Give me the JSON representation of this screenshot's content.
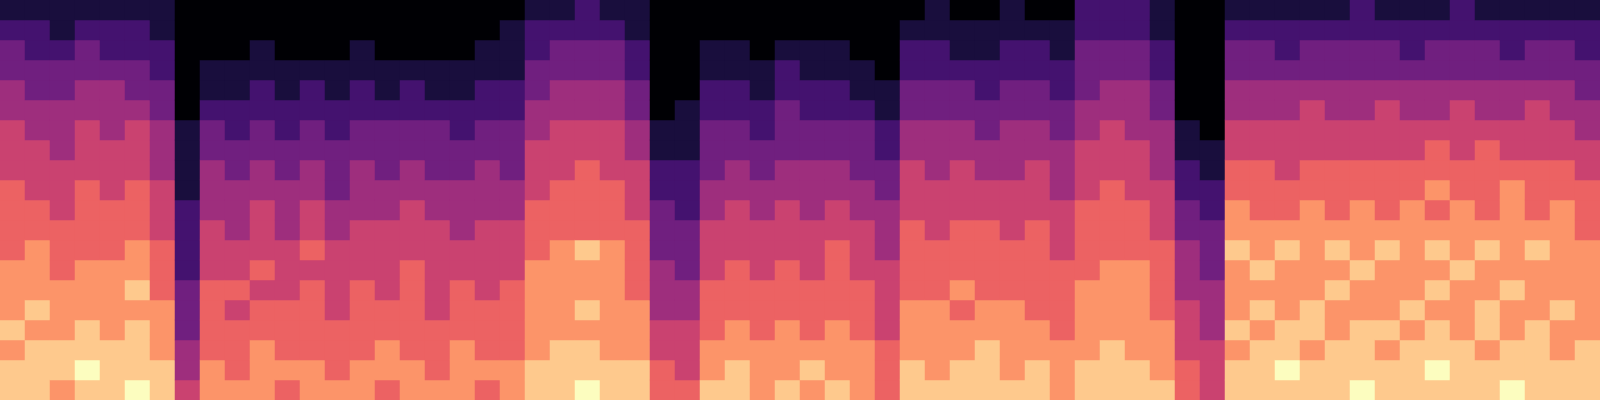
{
  "chart_data": {
    "type": "heatmap",
    "tick_labels": false,
    "zlim": [
      0,
      9
    ],
    "cells": [
      [
        8,
        8,
        7,
        8,
        7,
        7,
        7,
        6,
        6,
        6,
        6,
        5,
        5,
        5,
        4,
        4,
        3,
        3,
        2,
        1
      ],
      [
        8,
        8,
        8,
        7,
        8,
        7,
        7,
        7,
        6,
        6,
        5,
        5,
        5,
        4,
        4,
        3,
        3,
        2,
        2,
        1
      ],
      [
        7,
        8,
        8,
        7,
        7,
        7,
        6,
        6,
        6,
        5,
        5,
        5,
        4,
        4,
        4,
        3,
        3,
        2,
        1,
        1
      ],
      [
        8,
        9,
        8,
        8,
        7,
        7,
        7,
        6,
        6,
        6,
        6,
        5,
        5,
        5,
        4,
        4,
        3,
        3,
        2,
        1
      ],
      [
        8,
        8,
        8,
        7,
        7,
        7,
        7,
        6,
        6,
        6,
        5,
        5,
        5,
        4,
        4,
        4,
        3,
        2,
        2,
        1
      ],
      [
        9,
        8,
        8,
        8,
        7,
        8,
        7,
        7,
        6,
        6,
        6,
        5,
        5,
        5,
        4,
        3,
        3,
        2,
        2,
        1
      ],
      [
        8,
        8,
        7,
        7,
        7,
        6,
        6,
        6,
        5,
        5,
        5,
        4,
        4,
        4,
        3,
        3,
        2,
        2,
        1,
        1
      ],
      [
        5,
        4,
        4,
        3,
        3,
        3,
        2,
        2,
        2,
        2,
        1,
        1,
        1,
        1,
        0,
        0,
        0,
        0,
        0,
        0
      ],
      [
        7,
        7,
        6,
        6,
        6,
        6,
        5,
        5,
        5,
        4,
        4,
        4,
        3,
        3,
        2,
        1,
        1,
        0,
        0,
        0
      ],
      [
        7,
        6,
        6,
        6,
        5,
        6,
        5,
        5,
        4,
        4,
        4,
        3,
        3,
        2,
        2,
        1,
        1,
        0,
        0,
        0
      ],
      [
        7,
        7,
        7,
        6,
        6,
        5,
        6,
        5,
        5,
        5,
        4,
        4,
        3,
        3,
        2,
        2,
        1,
        1,
        0,
        0
      ],
      [
        6,
        7,
        6,
        6,
        6,
        5,
        5,
        5,
        4,
        4,
        4,
        3,
        3,
        2,
        2,
        1,
        1,
        0,
        0,
        0
      ],
      [
        7,
        7,
        6,
        6,
        6,
        6,
        5,
        6,
        5,
        5,
        4,
        4,
        3,
        3,
        2,
        2,
        1,
        0,
        0,
        0
      ],
      [
        7,
        6,
        6,
        6,
        5,
        5,
        5,
        5,
        4,
        4,
        3,
        3,
        3,
        2,
        2,
        1,
        1,
        0,
        0,
        0
      ],
      [
        7,
        7,
        6,
        6,
        6,
        6,
        5,
        5,
        5,
        4,
        4,
        4,
        3,
        3,
        2,
        2,
        1,
        1,
        0,
        0
      ],
      [
        6,
        7,
        7,
        6,
        6,
        5,
        5,
        5,
        5,
        4,
        4,
        3,
        3,
        3,
        2,
        1,
        1,
        0,
        0,
        0
      ],
      [
        7,
        7,
        6,
        6,
        6,
        6,
        6,
        5,
        5,
        5,
        4,
        4,
        3,
        3,
        2,
        2,
        1,
        0,
        0,
        0
      ],
      [
        7,
        6,
        6,
        6,
        5,
        5,
        5,
        5,
        5,
        4,
        4,
        3,
        3,
        3,
        2,
        1,
        1,
        0,
        0,
        0
      ],
      [
        7,
        7,
        7,
        6,
        6,
        6,
        5,
        5,
        4,
        4,
        4,
        3,
        3,
        2,
        2,
        1,
        1,
        0,
        0,
        0
      ],
      [
        6,
        7,
        6,
        6,
        6,
        5,
        5,
        5,
        5,
        4,
        4,
        4,
        3,
        3,
        2,
        2,
        1,
        1,
        0,
        0
      ],
      [
        7,
        7,
        6,
        6,
        6,
        6,
        5,
        5,
        5,
        4,
        4,
        3,
        3,
        3,
        2,
        2,
        1,
        1,
        1,
        0
      ],
      [
        8,
        8,
        7,
        7,
        7,
        7,
        7,
        6,
        6,
        6,
        5,
        5,
        5,
        4,
        4,
        3,
        3,
        2,
        2,
        1
      ],
      [
        8,
        8,
        8,
        7,
        7,
        7,
        7,
        7,
        6,
        6,
        6,
        5,
        5,
        5,
        4,
        4,
        3,
        3,
        2,
        1
      ],
      [
        9,
        8,
        8,
        7,
        8,
        7,
        7,
        8,
        6,
        6,
        6,
        6,
        5,
        5,
        4,
        4,
        3,
        3,
        2,
        2
      ],
      [
        8,
        8,
        7,
        7,
        7,
        7,
        7,
        7,
        6,
        6,
        6,
        5,
        5,
        5,
        4,
        4,
        3,
        3,
        2,
        1
      ],
      [
        8,
        8,
        7,
        7,
        7,
        6,
        6,
        6,
        6,
        5,
        5,
        5,
        4,
        4,
        3,
        3,
        2,
        2,
        1,
        1
      ],
      [
        6,
        6,
        5,
        5,
        4,
        4,
        4,
        3,
        3,
        3,
        2,
        2,
        1,
        1,
        0,
        0,
        0,
        0,
        0,
        0
      ],
      [
        6,
        5,
        5,
        5,
        4,
        4,
        3,
        3,
        3,
        2,
        2,
        2,
        1,
        1,
        1,
        0,
        0,
        0,
        0,
        0
      ],
      [
        8,
        7,
        7,
        6,
        6,
        6,
        5,
        5,
        5,
        4,
        4,
        3,
        3,
        3,
        2,
        2,
        1,
        1,
        0,
        0
      ],
      [
        8,
        8,
        7,
        7,
        6,
        6,
        6,
        5,
        5,
        5,
        4,
        4,
        3,
        3,
        2,
        2,
        1,
        1,
        0,
        0
      ],
      [
        7,
        7,
        7,
        6,
        6,
        6,
        5,
        5,
        5,
        4,
        4,
        3,
        3,
        2,
        2,
        1,
        1,
        0,
        0,
        0
      ],
      [
        8,
        7,
        7,
        7,
        6,
        6,
        6,
        5,
        5,
        5,
        4,
        4,
        3,
        3,
        3,
        2,
        2,
        1,
        0,
        0
      ],
      [
        7,
        8,
        7,
        6,
        6,
        6,
        5,
        5,
        5,
        4,
        4,
        4,
        3,
        3,
        2,
        2,
        1,
        1,
        0,
        0
      ],
      [
        8,
        7,
        7,
        7,
        6,
        6,
        6,
        6,
        5,
        5,
        4,
        4,
        3,
        3,
        2,
        2,
        1,
        1,
        0,
        0
      ],
      [
        7,
        7,
        7,
        6,
        6,
        6,
        5,
        5,
        5,
        4,
        4,
        3,
        3,
        3,
        2,
        1,
        1,
        0,
        0,
        0
      ],
      [
        6,
        6,
        6,
        5,
        5,
        5,
        5,
        4,
        4,
        4,
        3,
        3,
        2,
        2,
        1,
        1,
        0,
        0,
        0,
        0
      ],
      [
        8,
        8,
        7,
        7,
        7,
        6,
        6,
        6,
        6,
        5,
        5,
        5,
        4,
        4,
        3,
        3,
        2,
        2,
        1,
        0
      ],
      [
        8,
        7,
        7,
        7,
        7,
        6,
        6,
        6,
        5,
        5,
        5,
        4,
        4,
        4,
        3,
        3,
        2,
        2,
        1,
        1
      ],
      [
        8,
        8,
        7,
        7,
        6,
        7,
        6,
        6,
        6,
        5,
        5,
        5,
        4,
        4,
        3,
        3,
        2,
        1,
        1,
        0
      ],
      [
        8,
        8,
        8,
        7,
        7,
        6,
        6,
        6,
        6,
        5,
        5,
        4,
        4,
        3,
        3,
        2,
        2,
        1,
        1,
        0
      ],
      [
        8,
        7,
        7,
        7,
        7,
        6,
        6,
        6,
        5,
        5,
        5,
        4,
        4,
        4,
        3,
        3,
        2,
        2,
        1,
        1
      ],
      [
        8,
        8,
        7,
        7,
        6,
        6,
        6,
        6,
        6,
        5,
        5,
        5,
        4,
        4,
        3,
        3,
        2,
        2,
        1,
        0
      ],
      [
        7,
        7,
        7,
        6,
        6,
        6,
        6,
        5,
        5,
        5,
        4,
        4,
        4,
        3,
        3,
        2,
        2,
        1,
        1,
        0
      ],
      [
        8,
        8,
        7,
        7,
        7,
        7,
        6,
        6,
        6,
        6,
        5,
        5,
        5,
        4,
        4,
        3,
        3,
        3,
        2,
        2
      ],
      [
        8,
        8,
        8,
        7,
        7,
        7,
        7,
        6,
        6,
        6,
        6,
        5,
        5,
        5,
        4,
        4,
        3,
        3,
        2,
        2
      ],
      [
        8,
        8,
        7,
        7,
        7,
        7,
        7,
        6,
        6,
        6,
        5,
        5,
        5,
        4,
        4,
        4,
        3,
        3,
        2,
        2
      ],
      [
        8,
        7,
        7,
        7,
        6,
        6,
        6,
        6,
        5,
        5,
        5,
        4,
        4,
        4,
        3,
        3,
        2,
        2,
        1,
        1
      ],
      [
        6,
        6,
        5,
        5,
        5,
        4,
        4,
        4,
        3,
        3,
        2,
        2,
        1,
        1,
        0,
        0,
        0,
        0,
        0,
        0
      ],
      [
        5,
        5,
        5,
        4,
        4,
        4,
        3,
        3,
        3,
        2,
        2,
        1,
        1,
        0,
        0,
        0,
        0,
        0,
        0,
        0
      ],
      [
        8,
        8,
        7,
        8,
        7,
        7,
        7,
        8,
        7,
        7,
        6,
        6,
        5,
        5,
        4,
        4,
        3,
        3,
        2,
        1
      ],
      [
        8,
        8,
        8,
        7,
        8,
        7,
        8,
        7,
        7,
        6,
        6,
        6,
        5,
        5,
        4,
        4,
        3,
        3,
        2,
        1
      ],
      [
        8,
        9,
        8,
        8,
        7,
        7,
        7,
        8,
        7,
        6,
        6,
        5,
        5,
        5,
        4,
        4,
        3,
        2,
        2,
        1
      ],
      [
        8,
        8,
        7,
        8,
        8,
        7,
        7,
        7,
        7,
        7,
        6,
        6,
        5,
        5,
        5,
        4,
        3,
        3,
        2,
        1
      ],
      [
        8,
        8,
        8,
        7,
        7,
        8,
        7,
        8,
        7,
        6,
        6,
        6,
        5,
        5,
        4,
        4,
        3,
        3,
        2,
        1
      ],
      [
        9,
        8,
        8,
        8,
        7,
        7,
        8,
        7,
        7,
        7,
        6,
        6,
        5,
        5,
        4,
        4,
        3,
        3,
        2,
        2
      ],
      [
        8,
        8,
        7,
        8,
        7,
        7,
        7,
        8,
        7,
        6,
        6,
        6,
        5,
        5,
        5,
        4,
        3,
        3,
        2,
        1
      ],
      [
        8,
        8,
        8,
        7,
        8,
        7,
        7,
        7,
        7,
        7,
        6,
        6,
        5,
        5,
        4,
        4,
        3,
        2,
        2,
        1
      ],
      [
        8,
        9,
        8,
        8,
        7,
        8,
        7,
        8,
        7,
        6,
        7,
        6,
        6,
        5,
        4,
        4,
        3,
        3,
        2,
        1
      ],
      [
        8,
        8,
        8,
        7,
        7,
        7,
        8,
        7,
        7,
        7,
        6,
        6,
        5,
        5,
        5,
        4,
        3,
        3,
        2,
        2
      ],
      [
        8,
        8,
        7,
        8,
        8,
        7,
        7,
        8,
        7,
        6,
        6,
        6,
        6,
        5,
        4,
        4,
        3,
        3,
        2,
        1
      ],
      [
        9,
        8,
        8,
        7,
        7,
        8,
        7,
        7,
        7,
        7,
        7,
        6,
        5,
        5,
        4,
        4,
        3,
        2,
        2,
        1
      ],
      [
        8,
        8,
        8,
        8,
        7,
        7,
        7,
        8,
        7,
        6,
        6,
        6,
        5,
        5,
        5,
        4,
        3,
        3,
        2,
        1
      ],
      [
        8,
        8,
        7,
        7,
        8,
        7,
        7,
        7,
        7,
        7,
        6,
        6,
        5,
        5,
        4,
        4,
        3,
        3,
        2,
        1
      ],
      [
        8,
        8,
        8,
        7,
        7,
        7,
        7,
        7,
        6,
        6,
        6,
        5,
        5,
        4,
        4,
        3,
        3,
        2,
        2,
        1
      ]
    ]
  }
}
